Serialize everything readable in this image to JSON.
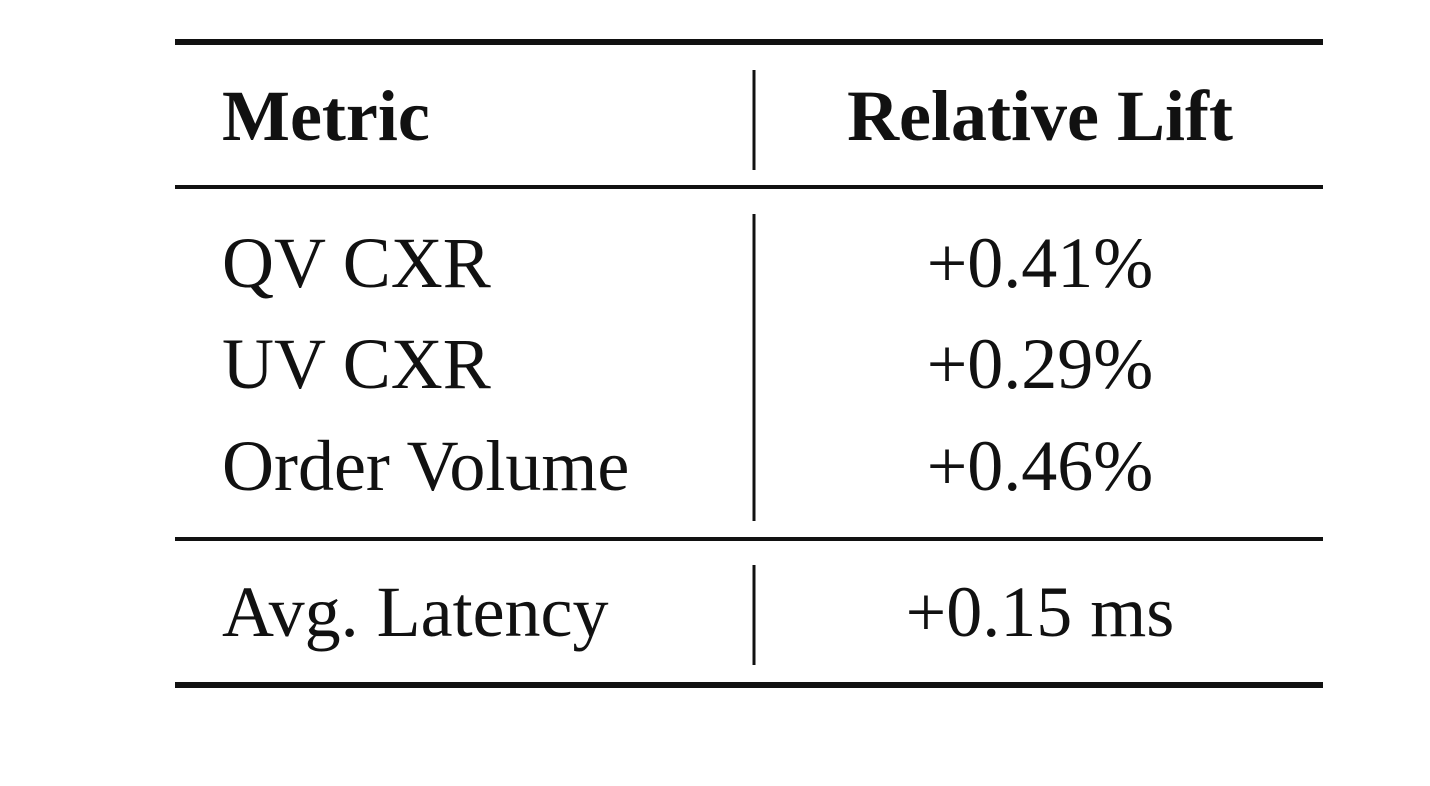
{
  "table": {
    "header": [
      "Metric",
      "Relative Lift"
    ],
    "rows": [
      [
        "QV CXR",
        "+0.41%"
      ],
      [
        "UV CXR",
        "+0.29%"
      ],
      [
        "Order Volume",
        "+0.46%"
      ],
      [
        "Avg. Latency",
        "+0.15 ms"
      ]
    ]
  }
}
